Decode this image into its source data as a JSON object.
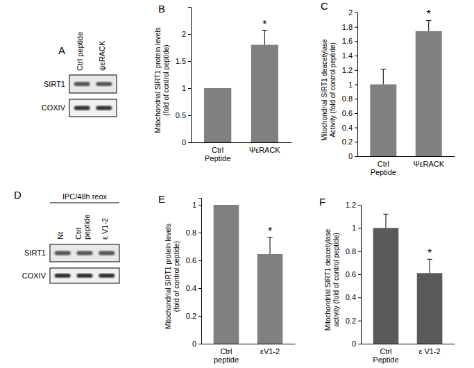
{
  "chart_data": [
    {
      "type": "bar",
      "panel": "B",
      "y_label": "Mitochondrial SIRT1 protein levels\n(fold of control peptide)",
      "categories": [
        "Ctrl\nPeptide",
        "ΨεRACK"
      ],
      "values": [
        1,
        1.8
      ],
      "errors": [
        null,
        0.27
      ],
      "color": "#808080",
      "ylim": [
        0,
        2.5
      ],
      "yticks": [
        0,
        0.5,
        1,
        1.5,
        2
      ],
      "annotations": [
        {
          "category": "ΨεRACK",
          "text": "*"
        }
      ]
    },
    {
      "type": "bar",
      "panel": "C",
      "y_label": "Mitochondrial SIRT1 deacetylase\nActivity  (fold of control peptide)",
      "categories": [
        "Ctrl\nPeptide",
        "ΨεRACK"
      ],
      "values": [
        1,
        1.74
      ],
      "errors": [
        0.21,
        0.15
      ],
      "color": "#808080",
      "ylim": [
        0,
        2
      ],
      "yticks": [
        0,
        0.2,
        0.4,
        0.6,
        0.8,
        1,
        1.2,
        1.4,
        1.6,
        1.8,
        2
      ],
      "annotations": [
        {
          "category": "ΨεRACK",
          "text": "*"
        }
      ]
    },
    {
      "type": "bar",
      "panel": "E",
      "y_label": "Mitochondrial SIRT1 protein levels\n(fold of control peptide)",
      "categories": [
        "Ctrl\npeptide",
        "εV1-2"
      ],
      "values": [
        1,
        0.645
      ],
      "errors": [
        null,
        0.12
      ],
      "color": "#808080",
      "ylim": [
        0,
        1.05
      ],
      "yticks": [
        0,
        0.2,
        0.4,
        0.6,
        0.8,
        1
      ],
      "annotations": [
        {
          "category": "εV1-2",
          "text": "*"
        }
      ]
    },
    {
      "type": "bar",
      "panel": "F",
      "y_label": "Mitochondrial SIRT1 deacetylase\nactivity (fold of control peptide)",
      "categories": [
        "Ctrl\nPeptide",
        "ε V1-2"
      ],
      "values": [
        1,
        0.61
      ],
      "errors": [
        0.12,
        0.12
      ],
      "color": "#595959",
      "ylim": [
        0,
        1.2
      ],
      "yticks": [
        0,
        0.2,
        0.4,
        0.6,
        0.8,
        1,
        1.2
      ],
      "annotations": [
        {
          "category": "ε V1-2",
          "text": "*"
        }
      ]
    }
  ],
  "blots": [
    {
      "panel": "A",
      "lanes": [
        "Ctrl peptide",
        "ψεRACK"
      ],
      "rows": [
        "SIRT1",
        "COXIV"
      ]
    },
    {
      "panel": "D",
      "header": "IPC/48h reox",
      "lanes": [
        "Nt",
        "Ctrl\npeptide",
        "ε V1-2"
      ],
      "rows": [
        "SIRT1",
        "COXIV"
      ]
    }
  ]
}
